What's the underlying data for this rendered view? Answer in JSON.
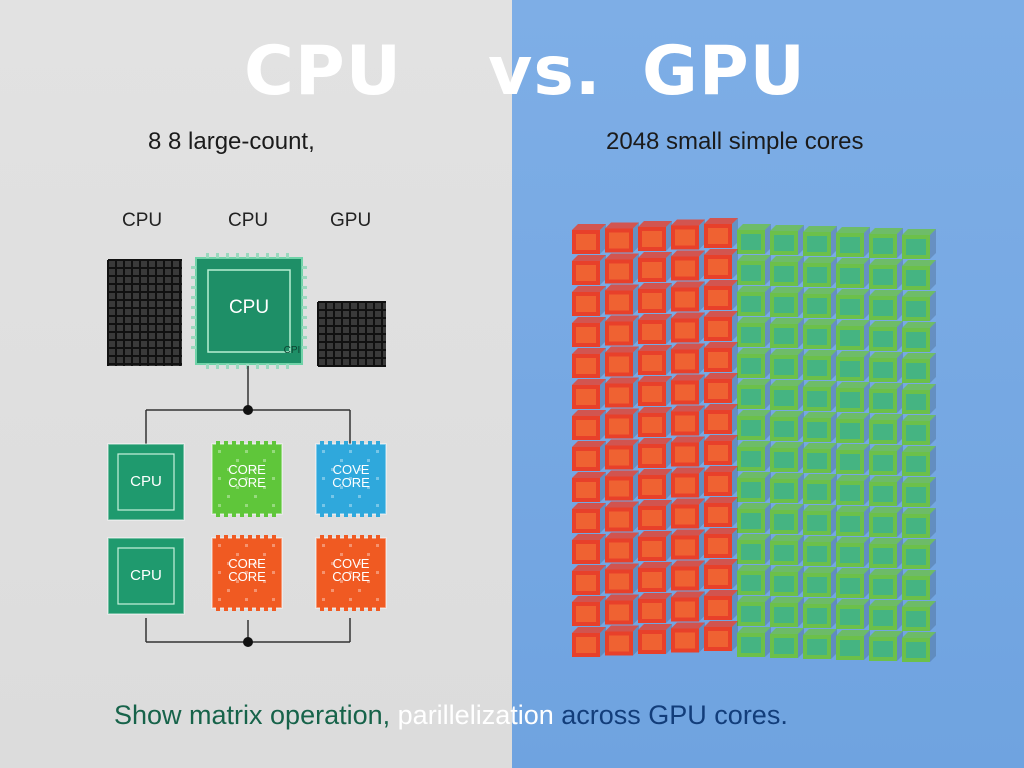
{
  "title": {
    "cpu": "CPU",
    "vs": "vs.",
    "gpu": "GPU"
  },
  "left_panel": {
    "subtitle": "8 8 large-count,",
    "chip_labels": [
      "CPU",
      "CPU",
      "GPU"
    ],
    "main_chip_text": "CPU",
    "main_chip_corner_text": "CPI",
    "core_grid": [
      {
        "kind": "cpu",
        "text": "CPU",
        "color": "#1f9a6e"
      },
      {
        "kind": "core",
        "text": "CORE\nCORE",
        "color": "#5fc63a"
      },
      {
        "kind": "core",
        "text": "COVE\nCORE",
        "color": "#2fa8dc"
      },
      {
        "kind": "cpu",
        "text": "CPU",
        "color": "#1f9a6e"
      },
      {
        "kind": "core",
        "text": "CORE\nCORE",
        "color": "#f05a22"
      },
      {
        "kind": "core",
        "text": "COVE\nCORE",
        "color": "#f05a22"
      }
    ],
    "background": "#dedede"
  },
  "right_panel": {
    "subtitle": "2048 small simple cores",
    "cube_colors": {
      "red": "#e8402a",
      "green": "#6cc04a",
      "teal": "#27a9b0"
    },
    "background": "#76a9e3"
  },
  "caption": {
    "part1": "Show matrix operation,",
    "part2": "parillelization",
    "part3": "across GPU cores."
  }
}
